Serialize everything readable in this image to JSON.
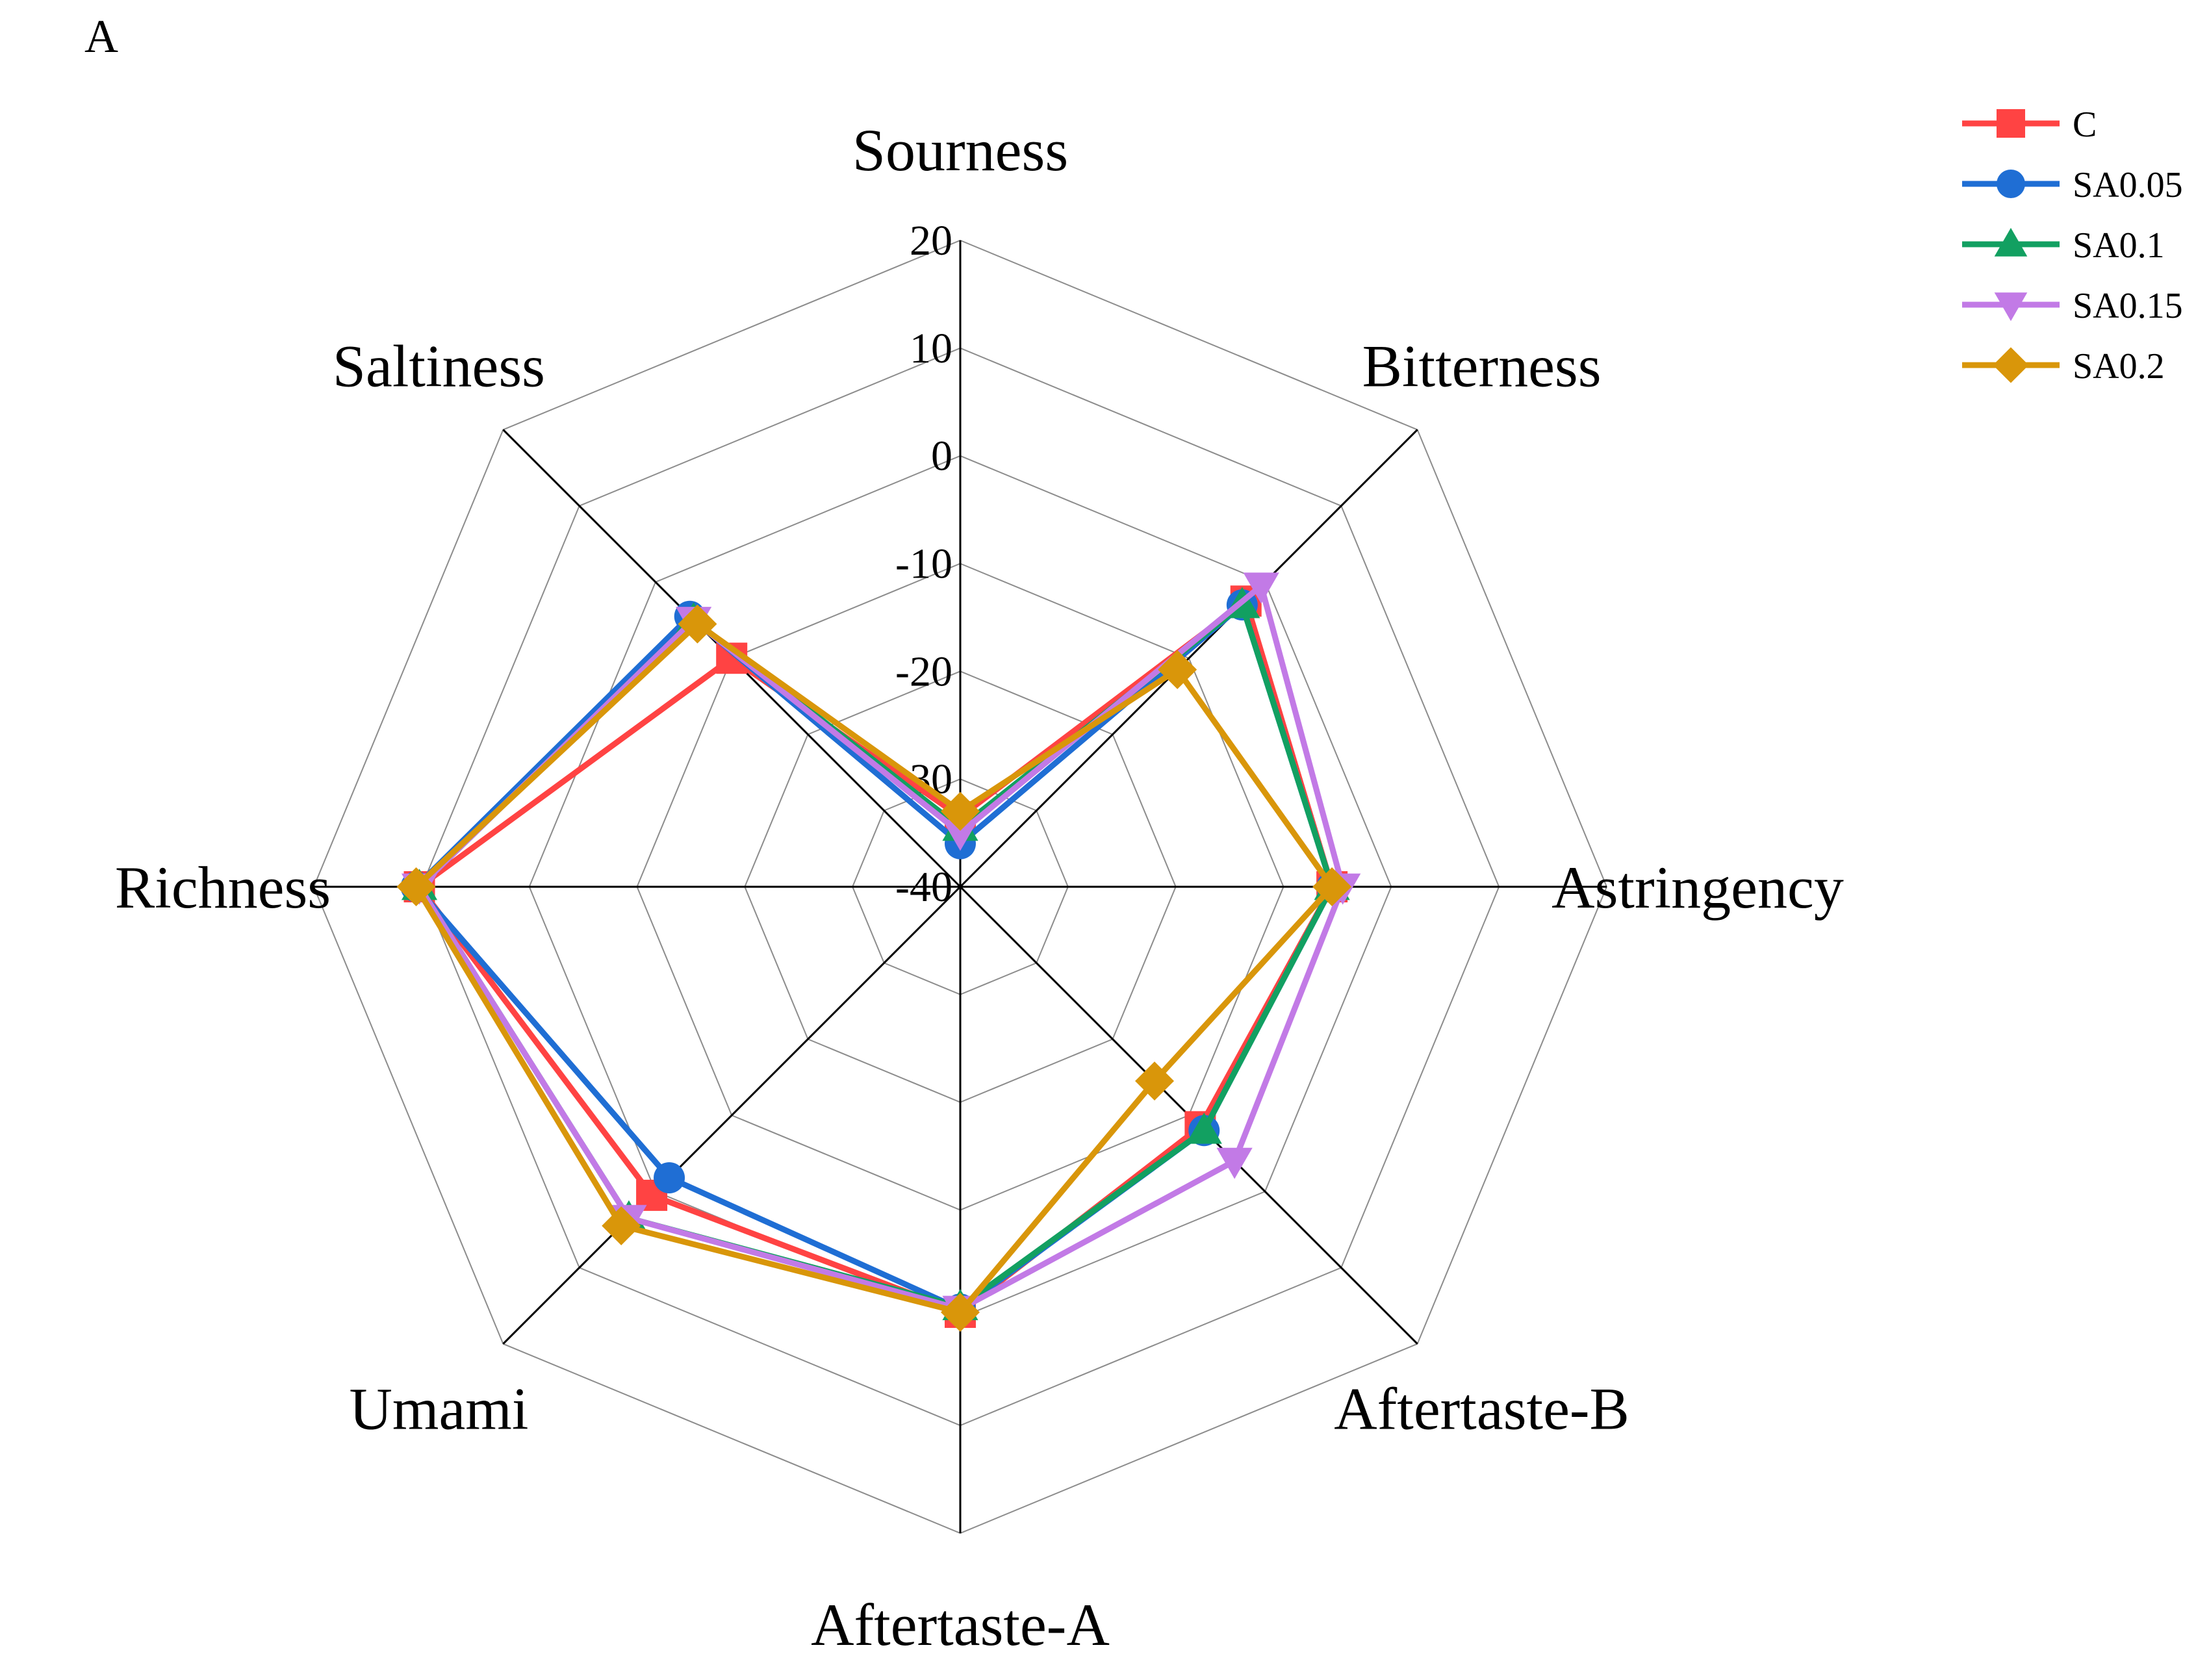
{
  "panel_label": "A",
  "chart_data": {
    "type": "radar",
    "axes": [
      "Sourness",
      "Bitterness",
      "Astringency",
      "Aftertaste-B",
      "Aftertaste-A",
      "Umami",
      "Richness",
      "Saltiness"
    ],
    "rlim": [
      -40,
      20
    ],
    "ticks": [
      20,
      10,
      0,
      -10,
      -20,
      -30,
      -40
    ],
    "grid": true,
    "legend_position": "top-right",
    "series": [
      {
        "name": "C",
        "color": "#ff4343",
        "marker": "square",
        "values": [
          -33.5,
          -2.5,
          -5.5,
          -8.5,
          -0.5,
          0.5,
          10.2,
          -10.0
        ]
      },
      {
        "name": "SA0.05",
        "color": "#1f6ed4",
        "marker": "circle",
        "values": [
          -36.0,
          -3.0,
          -5.5,
          -8.0,
          -0.8,
          -1.8,
          10.5,
          -4.5
        ]
      },
      {
        "name": "SA0.1",
        "color": "#12a061",
        "marker": "triangle-up",
        "values": [
          -34.5,
          -3.0,
          -5.5,
          -8.0,
          -1.0,
          3.5,
          10.2,
          -5.0
        ]
      },
      {
        "name": "SA0.15",
        "color": "#c27ae6",
        "marker": "triangle-down",
        "values": [
          -35.0,
          -0.5,
          -4.5,
          -4.0,
          -0.8,
          3.5,
          10.2,
          -5.0
        ]
      },
      {
        "name": "SA0.2",
        "color": "#d9960a",
        "marker": "diamond",
        "values": [
          -33.0,
          -11.5,
          -5.5,
          -14.5,
          -0.5,
          4.5,
          10.5,
          -5.5
        ]
      }
    ]
  }
}
